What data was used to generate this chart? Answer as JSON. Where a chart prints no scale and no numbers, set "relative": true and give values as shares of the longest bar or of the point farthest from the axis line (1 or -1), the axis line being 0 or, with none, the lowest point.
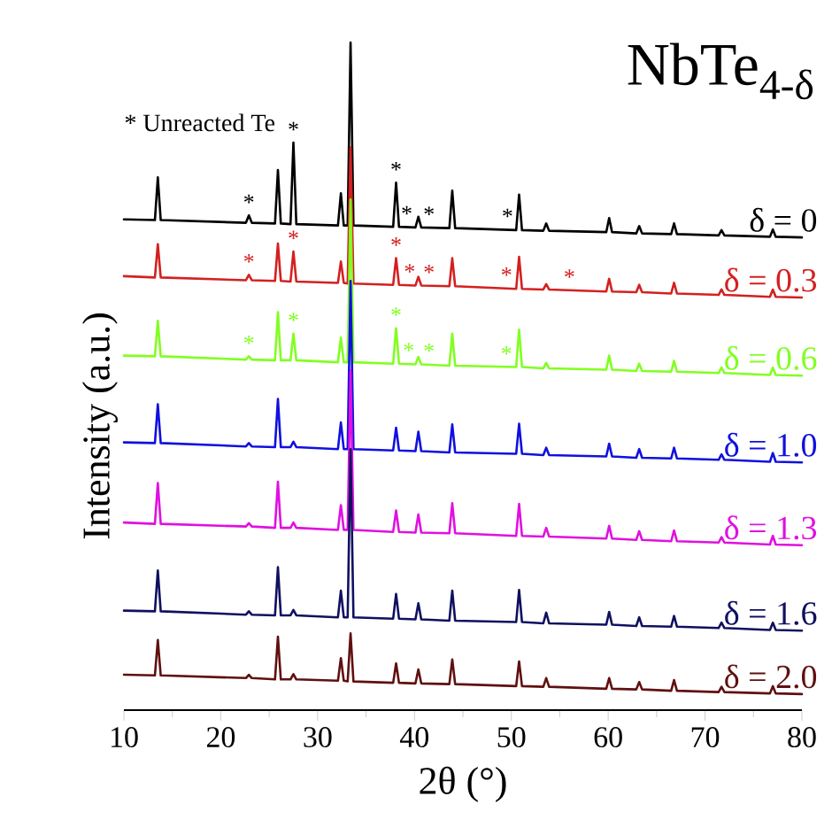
{
  "chart_data": {
    "type": "line",
    "title": "NbTe$_{4-δ}$",
    "xlabel": "2θ (°)",
    "ylabel": "Intensity (a.u.)",
    "relative": true,
    "xlim": [
      10,
      80
    ],
    "xticks": [
      10,
      20,
      30,
      40,
      50,
      60,
      70,
      80
    ],
    "x": [
      10,
      13.2,
      13.5,
      13.8,
      22.6,
      22.9,
      23.2,
      25.6,
      25.9,
      26.2,
      27.2,
      27.5,
      27.8,
      32.1,
      32.4,
      32.7,
      33.1,
      33.4,
      33.7,
      37.8,
      38.1,
      38.4,
      40.1,
      40.4,
      40.7,
      43.6,
      43.9,
      44.2,
      50.5,
      50.8,
      51.1,
      53.3,
      53.6,
      53.9,
      59.8,
      60.1,
      60.4,
      62.9,
      63.2,
      63.5,
      66.5,
      66.8,
      67.1,
      71.4,
      71.7,
      72.0,
      76.7,
      77.0,
      77.3,
      80
    ],
    "series": [
      {
        "name": "δ = 0",
        "color": "#000000",
        "values": [
          0.735,
          0.734,
          0.798,
          0.734,
          0.73,
          0.741,
          0.73,
          0.729,
          0.809,
          0.729,
          0.728,
          0.85,
          0.728,
          0.726,
          0.774,
          0.726,
          0.726,
          1.0,
          0.726,
          0.724,
          0.79,
          0.724,
          0.723,
          0.739,
          0.723,
          0.722,
          0.778,
          0.722,
          0.719,
          0.772,
          0.719,
          0.718,
          0.729,
          0.718,
          0.716,
          0.737,
          0.716,
          0.714,
          0.725,
          0.714,
          0.713,
          0.729,
          0.713,
          0.711,
          0.719,
          0.711,
          0.709,
          0.72,
          0.709,
          0.708
        ]
      },
      {
        "name": "δ = 0.3",
        "color": "#d42020",
        "values": [
          0.65,
          0.648,
          0.698,
          0.648,
          0.644,
          0.652,
          0.644,
          0.643,
          0.699,
          0.643,
          0.642,
          0.687,
          0.642,
          0.64,
          0.672,
          0.64,
          0.639,
          0.843,
          0.639,
          0.637,
          0.677,
          0.637,
          0.636,
          0.649,
          0.636,
          0.635,
          0.677,
          0.635,
          0.631,
          0.679,
          0.631,
          0.63,
          0.638,
          0.63,
          0.627,
          0.646,
          0.627,
          0.626,
          0.637,
          0.626,
          0.624,
          0.64,
          0.624,
          0.622,
          0.63,
          0.622,
          0.619,
          0.63,
          0.619,
          0.618
        ]
      },
      {
        "name": "δ = 0.6",
        "color": "#80ff20",
        "values": [
          0.531,
          0.53,
          0.583,
          0.53,
          0.525,
          0.53,
          0.525,
          0.524,
          0.596,
          0.524,
          0.524,
          0.564,
          0.524,
          0.521,
          0.558,
          0.521,
          0.521,
          0.765,
          0.521,
          0.519,
          0.572,
          0.519,
          0.518,
          0.529,
          0.518,
          0.516,
          0.564,
          0.516,
          0.514,
          0.57,
          0.514,
          0.512,
          0.52,
          0.512,
          0.51,
          0.531,
          0.51,
          0.508,
          0.519,
          0.508,
          0.507,
          0.523,
          0.507,
          0.505,
          0.513,
          0.505,
          0.502,
          0.513,
          0.502,
          0.501
        ]
      },
      {
        "name": "δ = 1.0",
        "color": "#1010e0",
        "values": [
          0.401,
          0.4,
          0.458,
          0.4,
          0.395,
          0.4,
          0.395,
          0.394,
          0.466,
          0.394,
          0.394,
          0.402,
          0.394,
          0.391,
          0.431,
          0.391,
          0.391,
          0.643,
          0.391,
          0.389,
          0.423,
          0.389,
          0.388,
          0.417,
          0.388,
          0.386,
          0.428,
          0.386,
          0.384,
          0.429,
          0.384,
          0.382,
          0.393,
          0.382,
          0.38,
          0.399,
          0.38,
          0.378,
          0.391,
          0.378,
          0.377,
          0.393,
          0.377,
          0.375,
          0.383,
          0.375,
          0.372,
          0.385,
          0.372,
          0.371
        ]
      },
      {
        "name": "δ = 1.3",
        "color": "#e010e0",
        "values": [
          0.281,
          0.279,
          0.34,
          0.279,
          0.275,
          0.28,
          0.275,
          0.273,
          0.342,
          0.273,
          0.273,
          0.281,
          0.273,
          0.27,
          0.307,
          0.27,
          0.27,
          0.509,
          0.27,
          0.267,
          0.299,
          0.267,
          0.266,
          0.293,
          0.266,
          0.265,
          0.31,
          0.265,
          0.261,
          0.309,
          0.261,
          0.26,
          0.273,
          0.26,
          0.257,
          0.276,
          0.257,
          0.255,
          0.268,
          0.255,
          0.253,
          0.269,
          0.253,
          0.251,
          0.259,
          0.251,
          0.248,
          0.261,
          0.248,
          0.247
        ]
      },
      {
        "name": "δ = 1.6",
        "color": "#101060",
        "values": [
          0.149,
          0.148,
          0.209,
          0.148,
          0.143,
          0.148,
          0.143,
          0.142,
          0.214,
          0.142,
          0.142,
          0.15,
          0.142,
          0.139,
          0.179,
          0.139,
          0.139,
          0.391,
          0.139,
          0.137,
          0.174,
          0.137,
          0.136,
          0.16,
          0.136,
          0.134,
          0.179,
          0.134,
          0.132,
          0.18,
          0.132,
          0.13,
          0.146,
          0.13,
          0.128,
          0.147,
          0.128,
          0.126,
          0.139,
          0.126,
          0.125,
          0.141,
          0.125,
          0.123,
          0.131,
          0.123,
          0.12,
          0.131,
          0.12,
          0.119
        ]
      },
      {
        "name": "δ = 2.0",
        "color": "#601010",
        "values": [
          0.053,
          0.052,
          0.105,
          0.052,
          0.048,
          0.053,
          0.048,
          0.046,
          0.11,
          0.046,
          0.046,
          0.054,
          0.046,
          0.044,
          0.078,
          0.044,
          0.043,
          0.115,
          0.043,
          0.041,
          0.07,
          0.041,
          0.04,
          0.061,
          0.04,
          0.039,
          0.076,
          0.039,
          0.036,
          0.073,
          0.036,
          0.035,
          0.048,
          0.035,
          0.032,
          0.048,
          0.032,
          0.031,
          0.042,
          0.031,
          0.029,
          0.045,
          0.029,
          0.027,
          0.035,
          0.027,
          0.025,
          0.036,
          0.025,
          0.024
        ]
      }
    ],
    "annotations": [
      "* Unreacted Te",
      {
        "text": "*",
        "x": 22.9,
        "y": 0.741
      },
      {
        "text": "*",
        "x": 27.5,
        "y": 0.85
      },
      {
        "text": "*",
        "x": 38.1,
        "y": 0.79
      },
      {
        "text": "*",
        "x": 39.2,
        "y": 0.724
      },
      {
        "text": "*",
        "x": 41.5,
        "y": 0.723
      },
      {
        "text": "*",
        "x": 49.6,
        "y": 0.72
      },
      {
        "text": "*",
        "x": 22.9,
        "y": 0.652
      },
      {
        "text": "*",
        "x": 27.5,
        "y": 0.687
      },
      {
        "text": "*",
        "x": 38.1,
        "y": 0.677
      },
      {
        "text": "*",
        "x": 39.5,
        "y": 0.637
      },
      {
        "text": "*",
        "x": 41.5,
        "y": 0.636
      },
      {
        "text": "*",
        "x": 49.5,
        "y": 0.632
      },
      {
        "text": "*",
        "x": 56.0,
        "y": 0.629
      },
      {
        "text": "*",
        "x": 22.9,
        "y": 0.53
      },
      {
        "text": "*",
        "x": 27.5,
        "y": 0.564
      },
      {
        "text": "*",
        "x": 38.1,
        "y": 0.572
      },
      {
        "text": "*",
        "x": 39.4,
        "y": 0.519
      },
      {
        "text": "*",
        "x": 41.5,
        "y": 0.518
      },
      {
        "text": "*",
        "x": 49.5,
        "y": 0.514
      }
    ]
  }
}
